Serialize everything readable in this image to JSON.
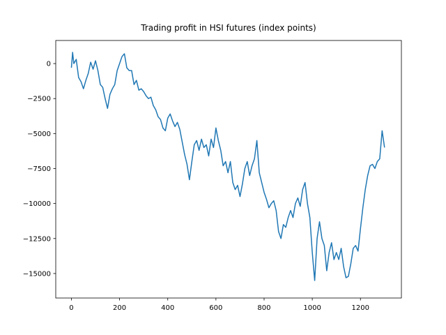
{
  "chart_data": {
    "type": "line",
    "title": "Trading profit in HSI futures (index points)",
    "x": [
      0,
      5,
      10,
      20,
      30,
      40,
      50,
      60,
      70,
      80,
      90,
      100,
      110,
      120,
      130,
      140,
      150,
      160,
      170,
      180,
      190,
      200,
      210,
      220,
      230,
      240,
      250,
      260,
      270,
      280,
      290,
      300,
      310,
      320,
      330,
      340,
      350,
      360,
      370,
      380,
      390,
      400,
      410,
      420,
      430,
      440,
      450,
      460,
      470,
      480,
      490,
      500,
      510,
      520,
      530,
      540,
      550,
      560,
      570,
      580,
      590,
      600,
      610,
      620,
      630,
      640,
      650,
      660,
      670,
      680,
      690,
      700,
      710,
      720,
      730,
      740,
      750,
      760,
      770,
      780,
      790,
      800,
      810,
      820,
      830,
      840,
      850,
      860,
      870,
      880,
      890,
      900,
      910,
      920,
      930,
      940,
      950,
      960,
      970,
      980,
      990,
      1000,
      1010,
      1020,
      1030,
      1040,
      1050,
      1060,
      1070,
      1080,
      1090,
      1100,
      1110,
      1120,
      1130,
      1140,
      1150,
      1160,
      1170,
      1180,
      1190,
      1200,
      1210,
      1220,
      1230,
      1240,
      1250,
      1260,
      1270,
      1280,
      1290,
      1300
    ],
    "series": [
      {
        "name": "profit",
        "color": "#1f77b4",
        "values": [
          -300,
          800,
          0,
          300,
          -1000,
          -1300,
          -1800,
          -1200,
          -700,
          100,
          -400,
          200,
          -500,
          -1500,
          -1700,
          -2500,
          -3200,
          -2200,
          -1800,
          -1500,
          -500,
          0,
          500,
          700,
          -300,
          -500,
          -500,
          -1500,
          -1200,
          -1900,
          -1800,
          -2000,
          -2300,
          -2500,
          -2400,
          -3000,
          -3300,
          -3800,
          -4000,
          -4600,
          -4800,
          -3900,
          -3600,
          -4100,
          -4500,
          -4200,
          -4700,
          -5600,
          -6500,
          -7200,
          -8300,
          -7000,
          -5800,
          -5500,
          -6200,
          -5400,
          -6000,
          -5800,
          -6600,
          -5400,
          -6000,
          -4600,
          -5500,
          -6200,
          -7300,
          -7000,
          -7800,
          -7000,
          -8500,
          -9000,
          -8700,
          -9500,
          -8600,
          -7500,
          -7000,
          -8000,
          -7300,
          -6800,
          -5500,
          -7800,
          -8500,
          -9200,
          -9700,
          -10300,
          -10000,
          -9800,
          -10500,
          -12000,
          -12500,
          -11500,
          -11700,
          -11000,
          -10500,
          -11000,
          -10000,
          -9600,
          -10200,
          -9000,
          -8500,
          -10000,
          -11000,
          -13500,
          -15500,
          -12500,
          -11300,
          -12500,
          -13000,
          -14800,
          -13500,
          -12800,
          -14000,
          -13500,
          -14000,
          -13200,
          -14500,
          -15300,
          -15200,
          -14300,
          -13200,
          -13000,
          -13400,
          -11800,
          -10300,
          -9000,
          -8000,
          -7300,
          -7200,
          -7500,
          -7000,
          -6800,
          -4800,
          -6000
        ]
      }
    ],
    "xlim": [
      -65,
      1370
    ],
    "xticks": [
      0,
      200,
      400,
      600,
      800,
      1000,
      1200
    ],
    "ylim": [
      -16750,
      1650
    ],
    "yticks": [
      0,
      {
        "value": -2500,
        "label": "−2500"
      },
      {
        "value": -5000,
        "label": "−5000"
      },
      {
        "value": -7500,
        "label": "−7500"
      },
      {
        "value": -10000,
        "label": "−10000"
      },
      {
        "value": -12500,
        "label": "−12500"
      },
      {
        "value": -15000,
        "label": "−15000"
      }
    ]
  }
}
